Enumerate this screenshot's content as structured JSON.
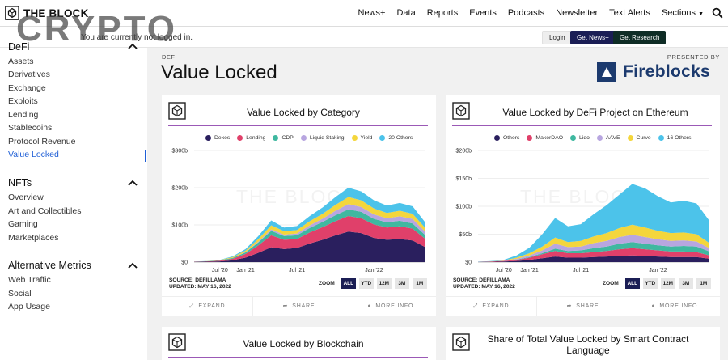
{
  "brand": {
    "logo_text": "THE BLOCK",
    "watermark": "CRYPTO"
  },
  "nav": {
    "items": [
      "News+",
      "Data",
      "Reports",
      "Events",
      "Podcasts",
      "Newsletter",
      "Text Alerts",
      "Sections"
    ],
    "sections_caret": "▼"
  },
  "loginbar": {
    "message": "You are currently not logged in.",
    "login_label": "Login",
    "news_label": "Get News+",
    "research_label": "Get Research"
  },
  "sidebar": {
    "defi_title": "DeFi",
    "defi_items": [
      "Assets",
      "Derivatives",
      "Exchange",
      "Exploits",
      "Lending",
      "Stablecoins",
      "Protocol Revenue",
      "Value Locked"
    ],
    "active_item": "Value Locked",
    "nfts_title": "NFTs",
    "nfts_items": [
      "Overview",
      "Art and Collectibles",
      "Gaming",
      "Marketplaces"
    ],
    "alt_title": "Alternative Metrics",
    "alt_items": [
      "Web Traffic",
      "Social",
      "App Usage"
    ]
  },
  "page": {
    "breadcrumb": "DEFI",
    "title": "Value Locked",
    "presented_by": "PRESENTED BY",
    "sponsor": "Fireblocks",
    "card_watermark": "THE BLOCK"
  },
  "zoom": {
    "label": "ZOOM",
    "options": [
      "ALL",
      "YTD",
      "12M",
      "3M",
      "1M"
    ],
    "selected": "ALL"
  },
  "actions": {
    "expand": "EXPAND",
    "share": "SHARE",
    "more_info": "MORE INFO"
  },
  "cards": [
    {
      "title": "Value Locked by Category",
      "source": "SOURCE: DEFILLAMA",
      "updated": "UPDATED: MAY 16, 2022"
    },
    {
      "title": "Value Locked by DeFi Project on Ethereum",
      "source": "SOURCE: DEFILLAMA",
      "updated": "UPDATED: MAY 16, 2022"
    },
    {
      "title": "Value Locked by Blockchain"
    },
    {
      "title": "Share of Total Value Locked by Smart Contract Language"
    }
  ],
  "chart_data": [
    {
      "type": "area",
      "title": "Value Locked by Category",
      "stacked": true,
      "x_tick_labels": [
        "Jul '20",
        "Jan '21",
        "Jul '21",
        "Jan '22"
      ],
      "y_tick_labels": [
        "$0",
        "$100b",
        "$200b",
        "$300b"
      ],
      "ylim": [
        0,
        300
      ],
      "y_unit": "$b",
      "legend_position": "top",
      "x": [
        "Jan '20",
        "Apr '20",
        "Jul '20",
        "Oct '20",
        "Jan '21",
        "Mar '21",
        "May '21",
        "Jun '21",
        "Jul '21",
        "Aug '21",
        "Sep '21",
        "Oct '21",
        "Nov '21",
        "Dec '21",
        "Jan '22",
        "Feb '22",
        "Mar '22",
        "Apr '22",
        "May '22"
      ],
      "series": [
        {
          "name": "Dexes",
          "color": "#2a1f5e",
          "values": [
            0.5,
            1,
            2,
            5,
            12,
            25,
            40,
            35,
            38,
            50,
            60,
            72,
            82,
            78,
            65,
            60,
            62,
            58,
            40
          ]
        },
        {
          "name": "Lending",
          "color": "#e0406a",
          "values": [
            0.5,
            1,
            2,
            4,
            10,
            20,
            32,
            25,
            24,
            30,
            34,
            38,
            42,
            40,
            36,
            33,
            34,
            32,
            22
          ]
        },
        {
          "name": "CDP",
          "color": "#3fb8a0",
          "values": [
            0.2,
            0.4,
            1,
            2,
            4,
            8,
            12,
            10,
            10,
            12,
            14,
            16,
            18,
            17,
            15,
            14,
            15,
            14,
            10
          ]
        },
        {
          "name": "Liquid Staking",
          "color": "#b8a6e0",
          "values": [
            0,
            0,
            0,
            0.5,
            1,
            2,
            4,
            4,
            5,
            7,
            9,
            12,
            14,
            13,
            12,
            11,
            12,
            12,
            9
          ]
        },
        {
          "name": "Yield",
          "color": "#f4d63c",
          "values": [
            0,
            0.2,
            0.5,
            2,
            4,
            7,
            11,
            9,
            9,
            11,
            13,
            16,
            19,
            18,
            16,
            14,
            15,
            14,
            10
          ]
        },
        {
          "name": "20 Others",
          "color": "#4cc3ea",
          "values": [
            0,
            0.2,
            0.5,
            2,
            4,
            8,
            13,
            10,
            11,
            14,
            17,
            21,
            25,
            24,
            22,
            20,
            21,
            20,
            15
          ]
        }
      ]
    },
    {
      "type": "area",
      "title": "Value Locked by DeFi Project on Ethereum",
      "stacked": true,
      "x_tick_labels": [
        "Jul '20",
        "Jan '21",
        "Jul '21",
        "Jan '22"
      ],
      "y_tick_labels": [
        "$0",
        "$50b",
        "$100b",
        "$150b",
        "$200b"
      ],
      "ylim": [
        0,
        200
      ],
      "y_unit": "$b",
      "legend_position": "top",
      "x": [
        "Jan '20",
        "Apr '20",
        "Jul '20",
        "Oct '20",
        "Jan '21",
        "Mar '21",
        "May '21",
        "Jun '21",
        "Jul '21",
        "Aug '21",
        "Sep '21",
        "Oct '21",
        "Nov '21",
        "Dec '21",
        "Jan '22",
        "Feb '22",
        "Mar '22",
        "Apr '22",
        "May '22"
      ],
      "series": [
        {
          "name": "Others",
          "color": "#2a1f5e",
          "values": [
            0.2,
            0.5,
            1,
            2,
            4,
            7,
            10,
            8,
            8,
            9,
            10,
            11,
            12,
            11,
            10,
            9,
            9,
            9,
            6
          ]
        },
        {
          "name": "MakerDAO",
          "color": "#e0406a",
          "values": [
            0.3,
            0.5,
            1,
            2,
            4,
            7,
            10,
            8,
            8,
            9,
            10,
            12,
            13,
            12,
            11,
            10,
            10,
            9,
            6
          ]
        },
        {
          "name": "Lido",
          "color": "#3fb8a0",
          "values": [
            0,
            0,
            0,
            0.5,
            1,
            2,
            4,
            4,
            5,
            7,
            8,
            10,
            11,
            10,
            9,
            9,
            10,
            10,
            7
          ]
        },
        {
          "name": "AAVE",
          "color": "#b8a6e0",
          "values": [
            0,
            0.1,
            0.5,
            1.5,
            3,
            5,
            9,
            7,
            7,
            9,
            10,
            12,
            13,
            12,
            11,
            10,
            10,
            9,
            6
          ]
        },
        {
          "name": "Curve",
          "color": "#f4d63c",
          "values": [
            0,
            0.2,
            0.5,
            2,
            4,
            7,
            11,
            9,
            10,
            12,
            14,
            16,
            18,
            17,
            15,
            14,
            14,
            13,
            9
          ]
        },
        {
          "name": "16 Others",
          "color": "#4cc3ea",
          "values": [
            0.2,
            0.5,
            1,
            4,
            10,
            22,
            35,
            28,
            30,
            40,
            50,
            60,
            73,
            70,
            62,
            55,
            57,
            55,
            40
          ]
        }
      ]
    }
  ]
}
